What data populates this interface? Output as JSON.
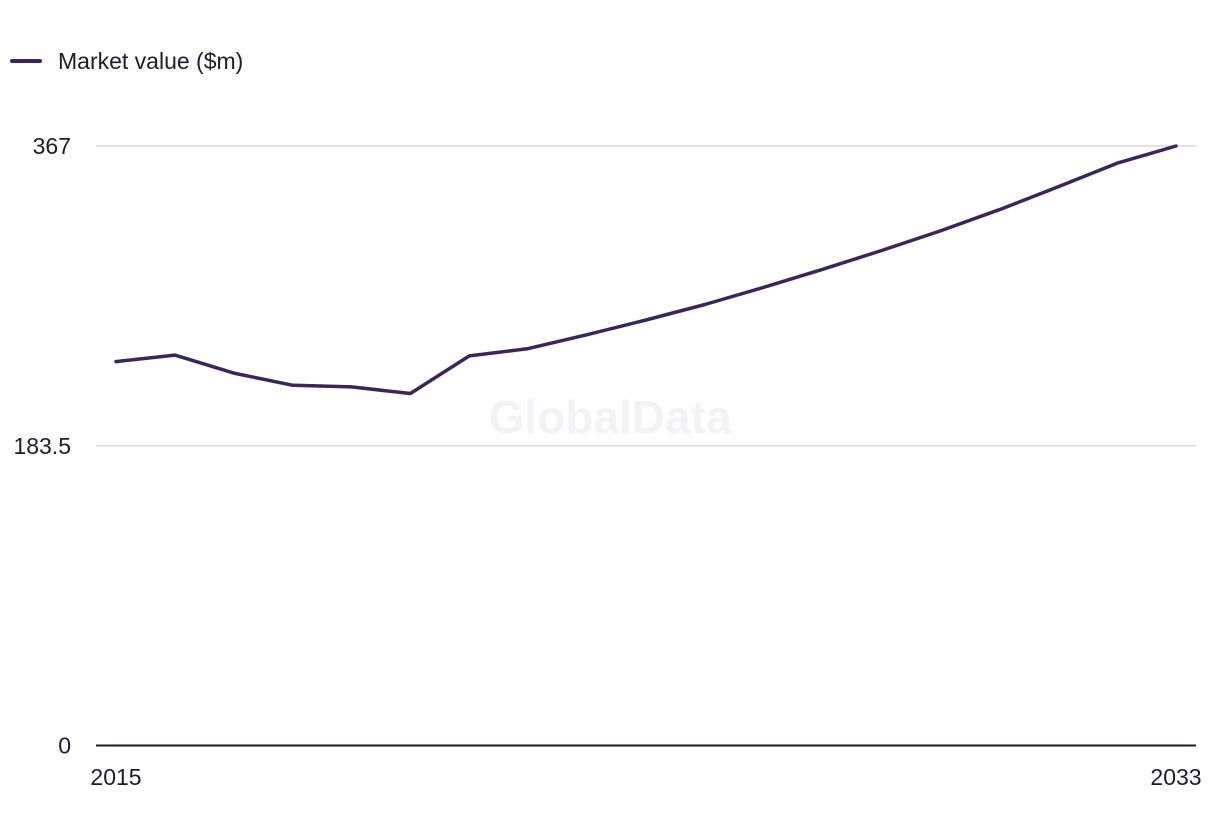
{
  "legend": {
    "label": "Market value ($m)"
  },
  "watermark": "GlobalData",
  "colors": {
    "series": "#3a2657",
    "grid": "#d9d9de",
    "axis": "#1f1a2e",
    "text": "#1f1a2e"
  },
  "chart_data": {
    "type": "line",
    "series": [
      {
        "name": "Market value ($m)",
        "x": [
          2015,
          2016,
          2017,
          2018,
          2019,
          2020,
          2021,
          2022,
          2023,
          2024,
          2025,
          2026,
          2027,
          2028,
          2029,
          2030,
          2031,
          2032,
          2033
        ]
      }
    ],
    "y_values": [
      235,
      239,
      228,
      220.5,
      219.5,
      215.5,
      238.5,
      243,
      251.5,
      260.5,
      270,
      280.5,
      291.5,
      303,
      315,
      328,
      342,
      356.5,
      367
    ],
    "x_tick_labels": [
      "2015",
      "2033"
    ],
    "y_tick_labels": [
      "0",
      "183.5",
      "367"
    ],
    "y_ticks": [
      0,
      183.5,
      367
    ],
    "xlim": [
      2015,
      2033
    ],
    "ylim": [
      0,
      367
    ],
    "grid": "horizontal",
    "legend_position": "top-left",
    "title": "",
    "xlabel": "",
    "ylabel": ""
  }
}
